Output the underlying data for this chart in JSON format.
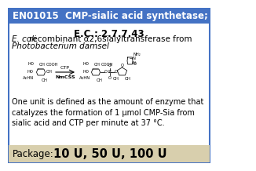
{
  "header_bg": "#4472c4",
  "header_text": "EN01015  CMP-sialic acid synthetase; NmCSS",
  "header_color": "#ffffff",
  "header_fontsize": 8.5,
  "ec_text": "E.C.: 2.7.7.43",
  "ec_fontsize": 8.5,
  "desc_line1_italic": "E. coli",
  "desc_line1_regular": " recombinant α2,6sialyltransferase from",
  "desc_line2": "Photobacterium damsel",
  "desc_fontsize": 7.5,
  "unit_text": "One unit is defined as the amount of enzyme that\ncatalyzes the formation of 1 μmol CMP-Sia from\nsialic acid and CTP per minute at 37 °C.",
  "unit_fontsize": 7.0,
  "package_label": "Package:",
  "package_value": "10 U, 50 U, 100 U",
  "package_label_fontsize": 8.5,
  "package_value_fontsize": 10.5,
  "package_bg": "#d8cfad",
  "body_bg": "#ffffff",
  "border_color": "#4472c4"
}
